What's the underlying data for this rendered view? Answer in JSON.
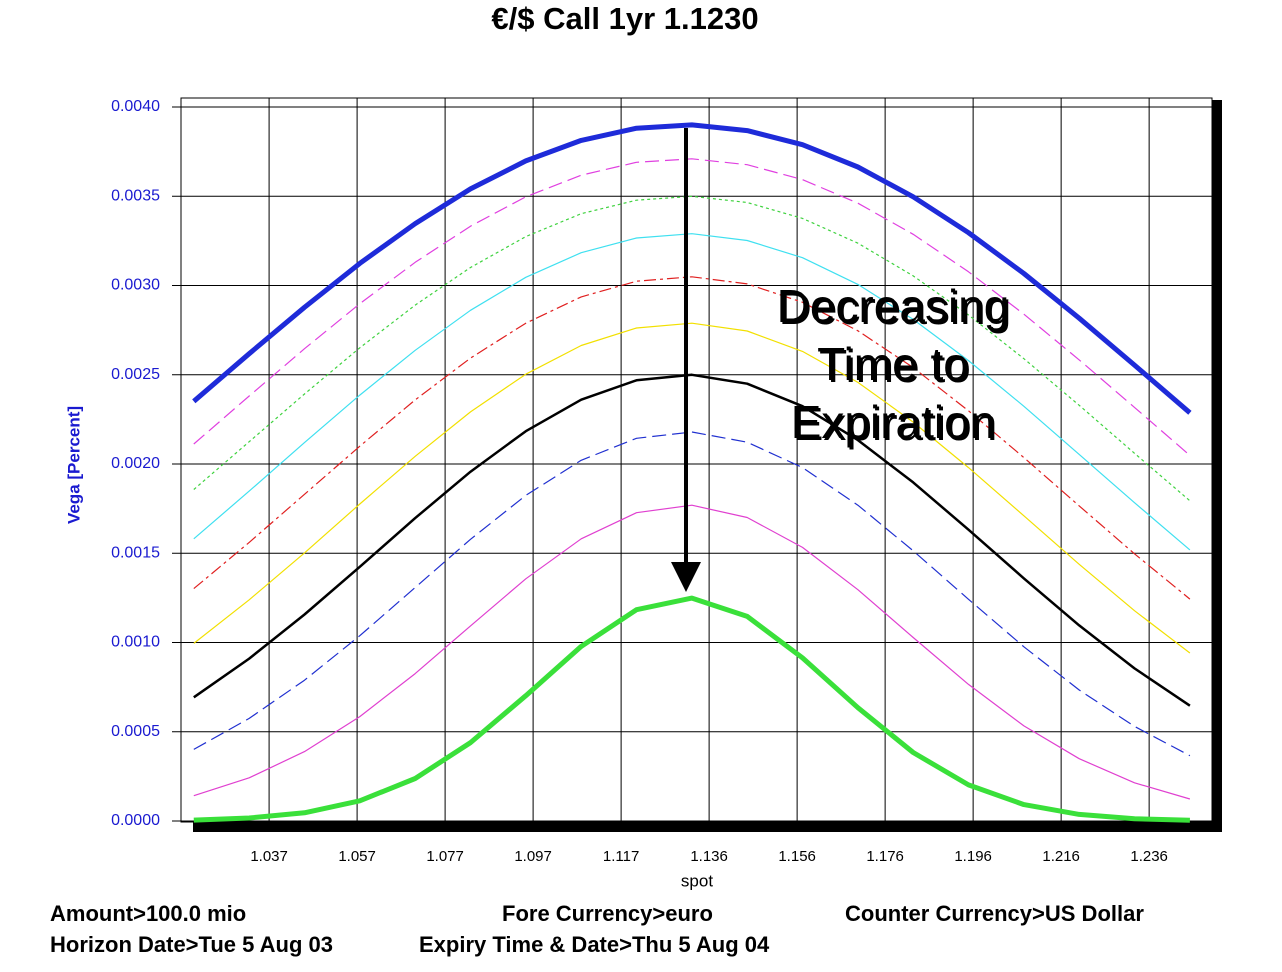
{
  "chart_data": {
    "type": "line",
    "title": "€/$ Call 1yr 1.1230",
    "xlabel": "spot",
    "ylabel": "Vega [Percent]",
    "x": [
      1.02,
      1.0325,
      1.045,
      1.0575,
      1.07,
      1.0825,
      1.095,
      1.1075,
      1.12,
      1.1325,
      1.145,
      1.1575,
      1.17,
      1.1825,
      1.195,
      1.2075,
      1.22,
      1.2325,
      1.245
    ],
    "xlim": [
      1.0171,
      1.25
    ],
    "xticks": [
      {
        "value": 1.037,
        "label": "1.037"
      },
      {
        "value": 1.05688,
        "label": "1.057"
      },
      {
        "value": 1.07676,
        "label": "1.077"
      },
      {
        "value": 1.09664,
        "label": "1.097"
      },
      {
        "value": 1.11652,
        "label": "1.117"
      },
      {
        "value": 1.1364,
        "label": "1.136"
      },
      {
        "value": 1.15628,
        "label": "1.156"
      },
      {
        "value": 1.17616,
        "label": "1.176"
      },
      {
        "value": 1.19604,
        "label": "1.196"
      },
      {
        "value": 1.21592,
        "label": "1.216"
      },
      {
        "value": 1.2358,
        "label": "1.236"
      }
    ],
    "ylim": [
      0,
      0.004
    ],
    "yticks": [
      {
        "value": 0,
        "label": "0.0000"
      },
      {
        "value": 0.0005,
        "label": "0.0005"
      },
      {
        "value": 0.001,
        "label": "0.0010"
      },
      {
        "value": 0.0015,
        "label": "0.0015"
      },
      {
        "value": 0.002,
        "label": "0.0020"
      },
      {
        "value": 0.0025,
        "label": "0.0025"
      },
      {
        "value": 0.003,
        "label": "0.0030"
      },
      {
        "value": 0.0035,
        "label": "0.0035"
      },
      {
        "value": 0.004,
        "label": "0.0040"
      }
    ],
    "grid": true,
    "series": [
      {
        "color": "#1e2bd9",
        "style": "solid",
        "weight": "bold",
        "values": [
          0.002351,
          0.002618,
          0.002878,
          0.003124,
          0.003347,
          0.003541,
          0.003698,
          0.003813,
          0.003881,
          0.0039,
          0.003868,
          0.003789,
          0.003664,
          0.003497,
          0.003296,
          0.003067,
          0.002817,
          0.002554,
          0.002287
        ]
      },
      {
        "color": "#e040e0",
        "style": "dashed",
        "weight": "normal",
        "values": [
          0.002112,
          0.002381,
          0.002646,
          0.002898,
          0.00313,
          0.003332,
          0.003497,
          0.003618,
          0.00369,
          0.00371,
          0.003677,
          0.003593,
          0.003461,
          0.003287,
          0.003077,
          0.002839,
          0.002583,
          0.002317,
          0.002048
        ]
      },
      {
        "color": "#3fd23f",
        "style": "dotted",
        "weight": "normal",
        "values": [
          0.001857,
          0.002125,
          0.002392,
          0.002651,
          0.00289,
          0.003101,
          0.003274,
          0.003402,
          0.003478,
          0.0035,
          0.003465,
          0.003376,
          0.003237,
          0.003054,
          0.002835,
          0.00259,
          0.002329,
          0.00206,
          0.001794
        ]
      },
      {
        "color": "#3fe0f0",
        "style": "solid",
        "weight": "normal",
        "values": [
          0.001581,
          0.001848,
          0.00212,
          0.002386,
          0.002637,
          0.002861,
          0.003046,
          0.003184,
          0.003266,
          0.00329,
          0.003252,
          0.003156,
          0.003006,
          0.00281,
          0.002579,
          0.002323,
          0.002054,
          0.001783,
          0.001519
        ]
      },
      {
        "color": "#e02020",
        "style": "dashdot",
        "weight": "normal",
        "values": [
          0.001302,
          0.001561,
          0.00183,
          0.0021,
          0.002359,
          0.002593,
          0.002789,
          0.002936,
          0.003024,
          0.003049,
          0.003009,
          0.002906,
          0.002746,
          0.00254,
          0.002298,
          0.002036,
          0.001765,
          0.001497,
          0.001243
        ]
      },
      {
        "color": "#f2e000",
        "style": "solid",
        "weight": "normal",
        "values": [
          0.000995,
          0.001239,
          0.001502,
          0.001776,
          0.002043,
          0.002292,
          0.002503,
          0.002664,
          0.002762,
          0.002789,
          0.002745,
          0.002631,
          0.002457,
          0.002235,
          0.00198,
          0.00171,
          0.001438,
          0.001178,
          0.000941
        ]
      },
      {
        "color": "#000000",
        "style": "solid",
        "weight": "medium",
        "values": [
          0.000693,
          0.00091,
          0.001157,
          0.001424,
          0.001697,
          0.001957,
          0.002184,
          0.00236,
          0.002469,
          0.0025,
          0.00245,
          0.002324,
          0.002134,
          0.001897,
          0.001632,
          0.001359,
          0.001096,
          0.000855,
          0.000646
        ]
      },
      {
        "color": "#2030d0",
        "style": "dashed",
        "weight": "normal",
        "values": [
          0.000401,
          0.000575,
          0.000789,
          0.001038,
          0.001308,
          0.001578,
          0.001824,
          0.002021,
          0.002144,
          0.002179,
          0.002122,
          0.00198,
          0.001769,
          0.001514,
          0.001242,
          0.000976,
          0.000734,
          0.00053,
          0.000366
        ]
      },
      {
        "color": "#e040d0",
        "style": "solid",
        "weight": "normal",
        "values": [
          0.000142,
          0.000242,
          0.000389,
          0.000585,
          0.000826,
          0.001093,
          0.001357,
          0.001581,
          0.001727,
          0.001769,
          0.0017,
          0.001533,
          0.001296,
          0.001028,
          0.000765,
          0.000533,
          0.000349,
          0.000214,
          0.000123
        ]
      },
      {
        "color": "#3ae03a",
        "style": "solid",
        "weight": "bold",
        "values": [
          5e-06,
          1.7e-05,
          4.6e-05,
          0.000113,
          0.000238,
          0.000439,
          0.000702,
          0.000978,
          0.001184,
          0.001249,
          0.001146,
          0.000914,
          0.000635,
          0.000384,
          0.000202,
          9.2e-05,
          3.7e-05,
          1.3e-05,
          4e-06
        ]
      }
    ],
    "annotation": [
      "Decreasing",
      "Time to",
      "Expiration"
    ],
    "footer": [
      [
        "Amount>100.0 mio",
        "Fore Currency>euro",
        "Counter Currency>US Dollar"
      ],
      [
        "Horizon Date>Tue 5 Aug 03",
        "Expiry Time & Date>Thu 5 Aug 04"
      ]
    ]
  }
}
